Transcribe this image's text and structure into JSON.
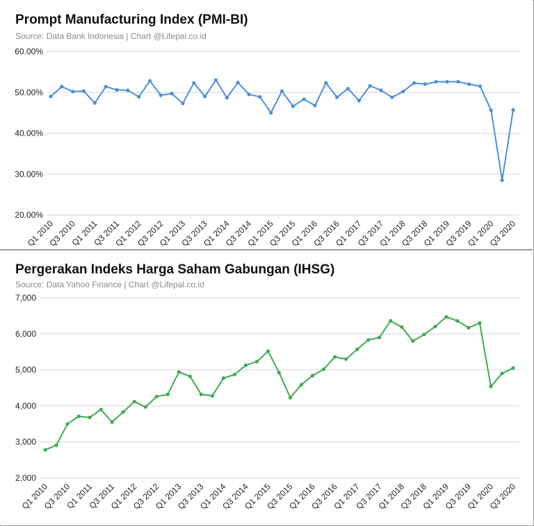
{
  "chart_data": [
    {
      "type": "line",
      "title": "Prompt Manufacturing Index (PMI-BI)",
      "subtitle": "Source: Data Bank Indonesia | Chart @Lifepal.co.id",
      "xlabel": "",
      "ylabel": "",
      "ylim": [
        20,
        60
      ],
      "yticks": [
        "20.00%",
        "30.00%",
        "40.00%",
        "50.00%",
        "60.00%"
      ],
      "ytick_values": [
        20,
        30,
        40,
        50,
        60
      ],
      "xtick_labels": [
        "Q1 2010",
        "Q3 2010",
        "Q1 2011",
        "Q3 2011",
        "Q1 2012",
        "Q3 2012",
        "Q1 2013",
        "Q3 2013",
        "Q1 2014",
        "Q3 2014",
        "Q1 2015",
        "Q3 2015",
        "Q1 2016",
        "Q3 2016",
        "Q1 2017",
        "Q3 2017",
        "Q1 2018",
        "Q3 2018",
        "Q1 2019",
        "Q3 2019",
        "Q1 2020",
        "Q3 2020"
      ],
      "color": "#4a90d9",
      "grid": true,
      "series": [
        {
          "values": [
            49.0,
            51.4,
            50.2,
            50.3,
            47.4,
            51.4,
            50.6,
            50.5,
            48.9,
            52.8,
            49.3,
            49.7,
            47.3,
            52.3,
            49.0,
            53.0,
            48.7,
            52.4,
            49.5,
            48.9,
            45.0,
            50.3,
            46.6,
            48.3,
            46.8,
            52.3,
            48.8,
            50.9,
            48.0,
            51.6,
            50.5,
            48.8,
            50.2,
            52.3,
            52.0,
            52.6,
            52.6,
            52.6,
            52.0,
            51.5,
            45.6,
            28.5,
            45.7
          ]
        }
      ]
    },
    {
      "type": "line",
      "title": "Pergerakan Indeks Harga Saham Gabungan (IHSG)",
      "subtitle": "Source: Data Yahoo Finance | Chart @Lifepal.co.id",
      "xlabel": "",
      "ylabel": "",
      "ylim": [
        2000,
        7000
      ],
      "yticks": [
        "2,000",
        "3,000",
        "4,000",
        "5,000",
        "6,000",
        "7,000"
      ],
      "ytick_values": [
        2000,
        3000,
        4000,
        5000,
        6000,
        7000
      ],
      "xtick_labels": [
        "Q1 2010",
        "Q3 2010",
        "Q1 2011",
        "Q3 2011",
        "Q1 2012",
        "Q3 2012",
        "Q1 2013",
        "Q3 2013",
        "Q1 2014",
        "Q3 2014",
        "Q1 2015",
        "Q3 2015",
        "Q1 2016",
        "Q3 2016",
        "Q1 2017",
        "Q3 2017",
        "Q1 2018",
        "Q3 2018",
        "Q1 2019",
        "Q3 2019",
        "Q1 2020",
        "Q3 2020"
      ],
      "color": "#3faa4f",
      "grid": true,
      "series": [
        {
          "values": [
            2780,
            2910,
            3500,
            3710,
            3680,
            3900,
            3550,
            3830,
            4120,
            3970,
            4260,
            4320,
            4940,
            4820,
            4320,
            4280,
            4770,
            4870,
            5130,
            5230,
            5520,
            4920,
            4230,
            4590,
            4840,
            5020,
            5360,
            5300,
            5570,
            5830,
            5900,
            6360,
            6190,
            5800,
            5980,
            6200,
            6470,
            6360,
            6170,
            6300,
            4540,
            4900,
            5050
          ]
        }
      ]
    }
  ]
}
